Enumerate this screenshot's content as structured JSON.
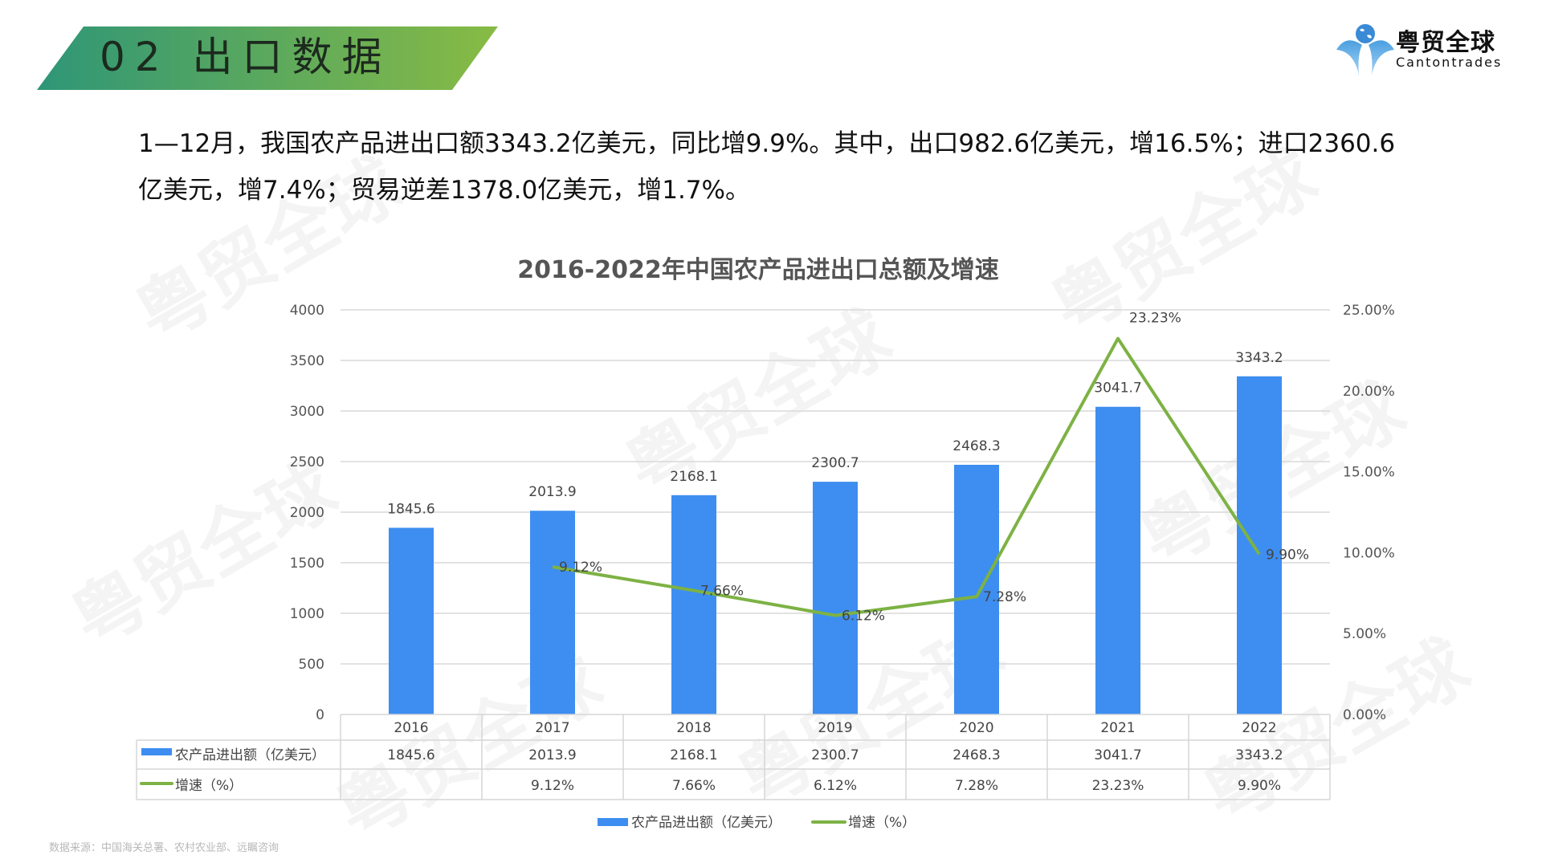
{
  "section": {
    "number": "02",
    "title": "出口数据"
  },
  "logo": {
    "name_cn": "粤贸全球",
    "name_en": "Cantontrades",
    "icon": "globe-logo-icon"
  },
  "summary": {
    "line1": "1—12月，我国农产品进出口额3343.2亿美元，同比增9.9%。其中，出口982.6亿美元，增16.5%；进口2360.6",
    "line2": "亿美元，增7.4%；贸易逆差1378.0亿美元，增1.7%。"
  },
  "watermark_text": "粤贸全球",
  "source": "数据来源：中国海关总署、农村农业部、远瞩咨询",
  "colors": {
    "bar": "#3d8ef0",
    "line": "#7db244",
    "banner_start": "#2e9677",
    "banner_end": "#88bb44"
  },
  "chart_data": {
    "type": "bar+line",
    "title": "2016-2022年中国农产品进出口总额及增速",
    "categories": [
      "2016",
      "2017",
      "2018",
      "2019",
      "2020",
      "2021",
      "2022"
    ],
    "series": [
      {
        "name": "农产品进出额（亿美元）",
        "type": "bar",
        "axis": "left",
        "values": [
          1845.6,
          2013.9,
          2168.1,
          2300.7,
          2468.3,
          3041.7,
          3343.2
        ],
        "labels": [
          "1845.6",
          "2013.9",
          "2168.1",
          "2300.7",
          "2468.3",
          "3041.7",
          "3343.2"
        ]
      },
      {
        "name": "增速（%）",
        "type": "line",
        "axis": "right",
        "values": [
          null,
          9.12,
          7.66,
          6.12,
          7.28,
          23.23,
          9.9
        ],
        "labels": [
          "",
          "9.12%",
          "7.66%",
          "6.12%",
          "7.28%",
          "23.23%",
          "9.90%"
        ]
      }
    ],
    "y_left": {
      "ticks": [
        "0",
        "500",
        "1000",
        "1500",
        "2000",
        "2500",
        "3000",
        "3500",
        "4000"
      ],
      "range": [
        0,
        4000
      ]
    },
    "y_right": {
      "ticks": [
        "0.00%",
        "5.00%",
        "10.00%",
        "15.00%",
        "20.00%",
        "25.00%"
      ],
      "range": [
        0,
        25
      ]
    },
    "grid": true,
    "data_table": true,
    "legend_position": "bottom"
  }
}
